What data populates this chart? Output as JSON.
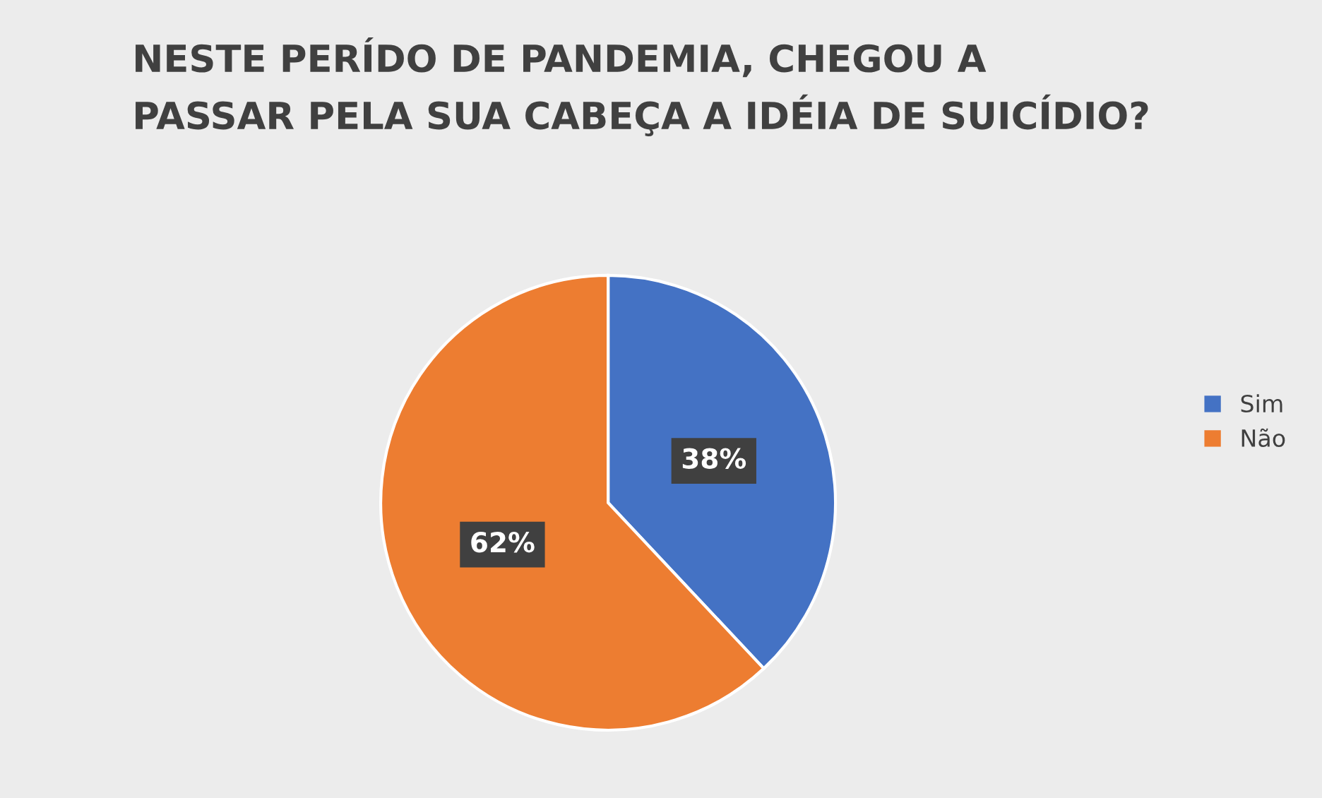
{
  "chart_data": {
    "type": "pie",
    "title": "NESTE PERÍDO DE PANDEMIA, CHEGOU A\nPASSAR PELA SUA CABEÇA A IDÉIA DE SUICÍDIO?",
    "categories": [
      "Sim",
      "Não"
    ],
    "values": [
      38,
      62
    ],
    "colors": [
      "#4472c4",
      "#ed7d31"
    ],
    "value_labels": [
      "38%",
      "62%"
    ],
    "legend": "right"
  }
}
